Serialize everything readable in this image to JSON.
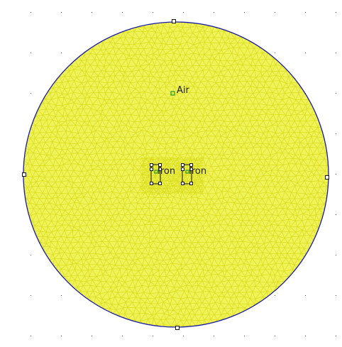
{
  "colors": {
    "background": "#ffffff",
    "mesh": "#d9dd1a",
    "mesh_fill": "#f0f25a",
    "boundary": "#1a1aa8",
    "node": "#111111",
    "label_marker": "#2a9a2a",
    "grid_dot": "#555555"
  },
  "regions": {
    "air_label": "Air",
    "iron_left_label": "Iron",
    "iron_right_label": "Iron"
  },
  "icons": {
    "node": "node-square-icon",
    "block_label_marker": "block-label-marker-icon"
  }
}
